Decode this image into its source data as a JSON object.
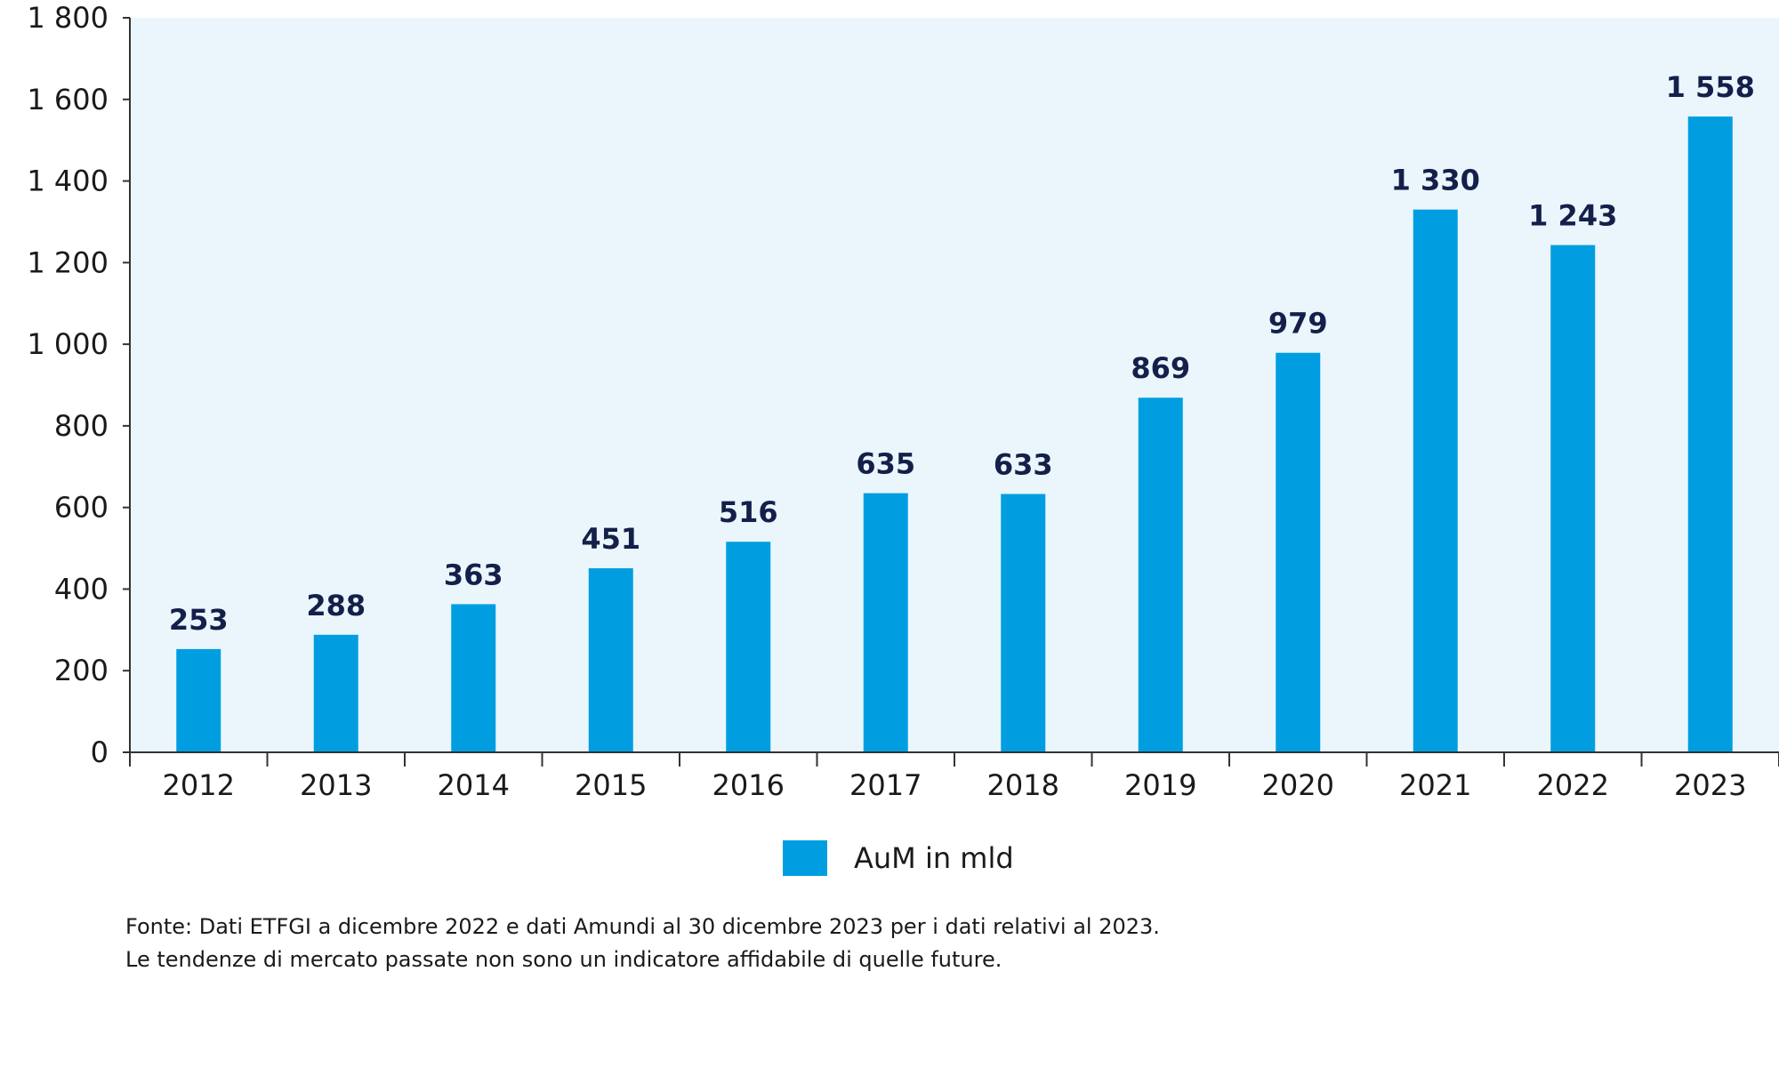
{
  "chart_data": {
    "type": "bar",
    "categories": [
      "2012",
      "2013",
      "2014",
      "2015",
      "2016",
      "2017",
      "2018",
      "2019",
      "2020",
      "2021",
      "2022",
      "2023"
    ],
    "values": [
      253,
      288,
      363,
      451,
      516,
      635,
      633,
      869,
      979,
      1330,
      1243,
      1558
    ],
    "data_labels": [
      "253",
      "288",
      "363",
      "451",
      "516",
      "635",
      "633",
      "869",
      "979",
      "1 330",
      "1 243",
      "1 558"
    ],
    "yticks": [
      0,
      200,
      400,
      600,
      800,
      1000,
      1200,
      1400,
      1600,
      1800
    ],
    "ytick_labels": [
      "0",
      "200",
      "400",
      "600",
      "800",
      "1 000",
      "1 200",
      "1 400",
      "1 600",
      "1 800"
    ],
    "ylim": [
      0,
      1800
    ],
    "legend": {
      "label": "AuM in  mld",
      "position": "bottom-center"
    },
    "bar_color": "#009ee0",
    "plot_background": "#eaf6fc",
    "label_color": "#14204a",
    "grid": false
  },
  "footnotes": {
    "line1": "Fonte: Dati ETFGI a dicembre 2022 e dati Amundi al 30 dicembre 2023 per i dati relativi al 2023.",
    "line2": "Le tendenze di mercato passate non sono un indicatore affidabile di quelle future."
  }
}
